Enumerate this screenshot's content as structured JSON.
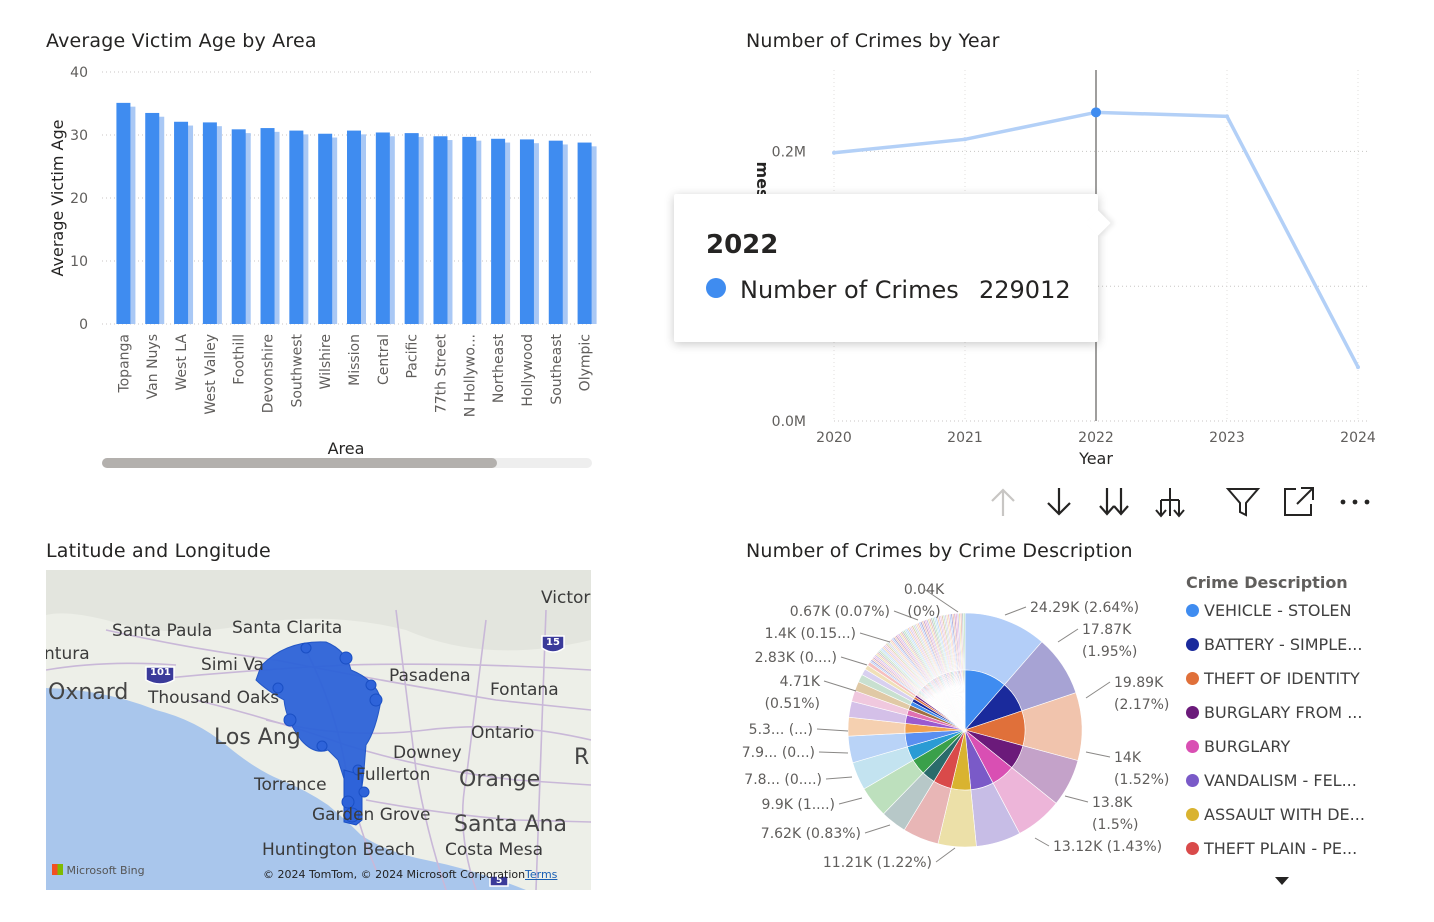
{
  "visuals": {
    "bar_title": "Average Victim Age by Area",
    "line_title": "Number of Crimes by Year",
    "map_title": "Latitude and Longitude",
    "pie_title": "Number of Crimes by Crime Description"
  },
  "chart_data": [
    {
      "type": "bar",
      "title": "Average Victim Age by Area",
      "xlabel": "Area",
      "ylabel": "Average Victim Age",
      "ylim": [
        0,
        40
      ],
      "yticks": [
        "0",
        "10",
        "20",
        "30",
        "40"
      ],
      "categories": [
        "Topanga",
        "Van Nuys",
        "West LA",
        "West Valley",
        "Foothill",
        "Devonshire",
        "Southwest",
        "Wilshire",
        "Mission",
        "Central",
        "Pacific",
        "77th Street",
        "N Hollywo...",
        "Northeast",
        "Hollywood",
        "Southeast",
        "Olympic"
      ],
      "values": [
        35.1,
        33.5,
        32.1,
        32.0,
        30.9,
        31.1,
        30.7,
        30.2,
        30.7,
        30.4,
        30.3,
        29.8,
        29.7,
        29.4,
        29.3,
        29.1,
        28.8
      ],
      "color": "#3f8cf0",
      "shadow_color": "#a9c8f5",
      "grid": true
    },
    {
      "type": "line",
      "title": "Number of Crimes by Year",
      "xlabel": "Year",
      "ylabel": "Number of Crimes",
      "ylabel_visible": "mes",
      "x": [
        "2020",
        "2021",
        "2022",
        "2023",
        "2024"
      ],
      "values": [
        199000,
        209000,
        229012,
        226000,
        40000
      ],
      "ylim": [
        0,
        253000
      ],
      "yticks": [
        "0.0M",
        "0.2M"
      ],
      "color": "#b3d0f7",
      "highlight_color": "#3f8cf0",
      "highlight_index": 2,
      "grid": true
    },
    {
      "type": "pie",
      "title": "Number of Crimes by Crime Description",
      "labels": [
        "24.29K (2.64%)",
        "17.87K (1.95%)",
        "19.89K (2.17%)",
        "14K (1.52%)",
        "13.8K (1.5%)",
        "13.12K (1.43%)",
        "11.21K (1.22%)",
        "7.62K (0.83%)",
        "9.9K (1....)",
        "7.8... (0....)",
        "7.9... (0...)",
        "5.3... (...)",
        "4.71K (0.51%)",
        "2.83K (0....)",
        "1.4K (0.15...)",
        "0.67K (0.07%)",
        "0.04K (0%)"
      ],
      "legend_title": "Crime Description",
      "legend": [
        {
          "name": "VEHICLE - STOLEN",
          "color": "#3f8cf0"
        },
        {
          "name": "BATTERY - SIMPLE...",
          "color": "#1a2a9c"
        },
        {
          "name": "THEFT OF IDENTITY",
          "color": "#e0703a"
        },
        {
          "name": "BURGLARY FROM ...",
          "color": "#6b1a7a"
        },
        {
          "name": "BURGLARY",
          "color": "#d94fb3"
        },
        {
          "name": "VANDALISM - FEL...",
          "color": "#7a5ac8"
        },
        {
          "name": "ASSAULT WITH DE...",
          "color": "#d9b330"
        },
        {
          "name": "THEFT PLAIN - PE...",
          "color": "#d94a4a"
        }
      ]
    }
  ],
  "tooltip": {
    "title": "2022",
    "label": "Number of Crimes",
    "value": "229012",
    "dot_color": "#3f8cf0"
  },
  "toolbar": [
    {
      "name": "drill-up-icon"
    },
    {
      "name": "drill-down-icon"
    },
    {
      "name": "next-level-icon"
    },
    {
      "name": "expand-hierarchy-icon"
    },
    {
      "name": "filter-icon"
    },
    {
      "name": "focus-mode-icon"
    },
    {
      "name": "more-options-icon"
    }
  ],
  "map": {
    "labels": {
      "victor": "Victor",
      "santa_paula": "Santa Paula",
      "santa_clarita": "Santa Clarita",
      "ntura": "ntura",
      "simi": "Simi Va",
      "oxnard": "Oxnard",
      "thousand_oaks": "Thousand Oaks",
      "pasadena": "Pasadena",
      "fontana": "Fontana",
      "los_angeles": "Los Ang",
      "ontario": "Ontario",
      "downey": "Downey",
      "ri": "Ri",
      "torrance": "Torrance",
      "fullerton": "Fullerton",
      "orange": "Orange",
      "garden_grove": "Garden Grove",
      "santa_ana": "Santa Ana",
      "huntington": "Huntington Beach",
      "costa_mesa": "Costa Mesa",
      "hwy_101": "101",
      "hwy_15": "15",
      "hwy_5": "5"
    },
    "bing": "Microsoft Bing",
    "copyright": "© 2024 TomTom, © 2024 Microsoft Corporation",
    "terms": "Terms"
  }
}
